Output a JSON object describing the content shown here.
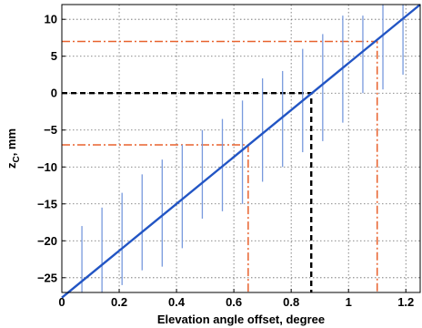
{
  "chart_data": {
    "type": "line",
    "title": "",
    "xlabel": "Elevation angle offset, degree",
    "ylabel": "z",
    "ylabel_subscript": "C",
    "ylabel_suffix": ", mm",
    "xlim": [
      0,
      1.25
    ],
    "ylim": [
      -27,
      12
    ],
    "grid": true,
    "x_ticks": [
      0,
      0.2,
      0.4,
      0.6,
      0.8,
      1,
      1.2
    ],
    "x_tick_labels": [
      "0",
      "0.2",
      "0.4",
      "0.6",
      "0.8",
      "1",
      "1.2"
    ],
    "y_ticks": [
      -25,
      -20,
      -15,
      -10,
      -5,
      0,
      5,
      10
    ],
    "y_tick_labels": [
      "−25",
      "−20",
      "−15",
      "−10",
      "−5",
      "0",
      "5",
      "10"
    ],
    "series": [
      {
        "kind": "fit-line",
        "color": "#2255c4",
        "x": [
          0,
          1.25
        ],
        "y": [
          -27.7,
          12.0
        ]
      },
      {
        "kind": "error-bars",
        "color": "#7799dd",
        "x": [
          0.07,
          0.14,
          0.21,
          0.28,
          0.35,
          0.42,
          0.49,
          0.56,
          0.63,
          0.7,
          0.77,
          0.84,
          0.91,
          0.98,
          1.05,
          1.12,
          1.19
        ],
        "low": [
          -27,
          -27,
          -26,
          -24,
          -23.5,
          -21,
          -17,
          -16,
          -15,
          -12,
          -10,
          -8,
          -6.5,
          -4,
          0,
          0.5,
          2.5
        ],
        "high": [
          -18,
          -15.5,
          -13.5,
          -11,
          -9,
          -7,
          -5,
          -3.5,
          -1,
          2,
          3,
          6,
          8,
          10.5,
          10.5,
          12,
          12
        ]
      }
    ],
    "reference_lines": [
      {
        "color": "#000000",
        "style": "dashed",
        "x": 0.87,
        "y": 0
      },
      {
        "color": "#e8622e",
        "style": "dashdot",
        "x": 0.65,
        "y": -7
      },
      {
        "color": "#e8622e",
        "style": "dashdot",
        "x": 1.1,
        "y": 7
      }
    ]
  }
}
